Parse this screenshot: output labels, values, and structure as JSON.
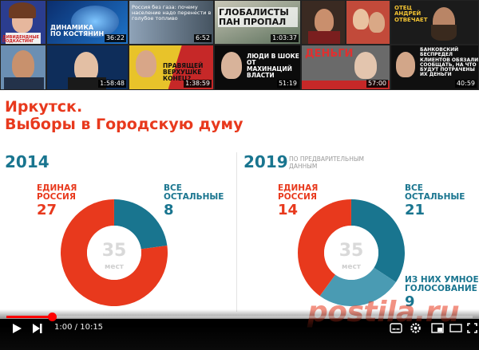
{
  "thumbnails": [
    {
      "duration": "",
      "caption": "Дивидендные подкастинг"
    },
    {
      "duration": "36:22",
      "caption": ""
    },
    {
      "duration": "6:52",
      "caption": "Россия без газа: почему население надо перенести в голубое топливо"
    },
    {
      "duration": "1:03:37",
      "caption": "ГЛОБАЛИСТЫ ПАН ПРОПАЛ"
    },
    {
      "duration": "",
      "caption": ""
    },
    {
      "duration": "",
      "caption": ""
    },
    {
      "duration": "",
      "caption": "Отец Андрей отвечает"
    },
    {
      "duration": "",
      "caption": ""
    },
    {
      "duration": "1:58:48",
      "caption": ""
    },
    {
      "duration": "1:38:59",
      "caption": "ПРАВЯЩЕЙ ВЕРХУШКЕ КОНЕЦ?"
    },
    {
      "duration": "51:19",
      "caption": "ЛЮДИ В ШОКЕ ОТ МАХИНАЦИЙ ВЛАСТИ"
    },
    {
      "duration": "57:00",
      "caption": "ДЕНЬГИ"
    },
    {
      "duration": "40:59",
      "caption": "БАНКОВСКИЙ БЕСПРЕДЕЛ клиентов обязали сообщать, на что будут потрачены их деньги"
    }
  ],
  "slide": {
    "title_line1": "Иркутск.",
    "title_line2": "Выборы в Городскую думу",
    "left": {
      "year": "2014",
      "ur_label_1": "ЕДИНАЯ",
      "ur_label_2": "РОССИЯ",
      "ur_value": "27",
      "rest_label_1": "ВСЕ",
      "rest_label_2": "ОСТАЛЬНЫЕ",
      "rest_value": "8",
      "total": "35",
      "total_unit": "мест"
    },
    "right": {
      "year": "2019",
      "note_1": "ПО ПРЕДВАРИТЕЛЬНЫМ",
      "note_2": "ДАННЫМ",
      "ur_label_1": "ЕДИНАЯ",
      "ur_label_2": "РОССИЯ",
      "ur_value": "14",
      "rest_label_1": "ВСЕ",
      "rest_label_2": "ОСТАЛЬНЫЕ",
      "rest_value": "21",
      "smart_label_1": "ИЗ НИХ УМНОЕ",
      "smart_label_2": "ГОЛОСОВАНИЕ",
      "smart_value": "9",
      "total": "35",
      "total_unit": "мест"
    }
  },
  "chart_data": [
    {
      "type": "pie",
      "title": "2014",
      "categories": [
        "Единая Россия",
        "Все остальные"
      ],
      "values": [
        27,
        8
      ],
      "total": 35,
      "colors": [
        "#e8391d",
        "#19758f"
      ]
    },
    {
      "type": "pie",
      "title": "2019",
      "categories": [
        "Единая Россия",
        "Все остальные (прочие)",
        "Из них умное голосование"
      ],
      "values": [
        14,
        12,
        9
      ],
      "total": 35,
      "colors": [
        "#e8391d",
        "#19758f",
        "#4a9bb3"
      ]
    }
  ],
  "player": {
    "current_time": "1:00",
    "duration": "10:15",
    "time_separator": "/",
    "progress_fraction": 0.0976,
    "play_icon": "play-icon",
    "next_icon": "next-icon",
    "volume_icon": "volume-icon",
    "settings_icon": "gear-icon",
    "fullscreen_icon": "fullscreen-icon",
    "accent": "#ff0000"
  },
  "watermark": "postila.ru"
}
